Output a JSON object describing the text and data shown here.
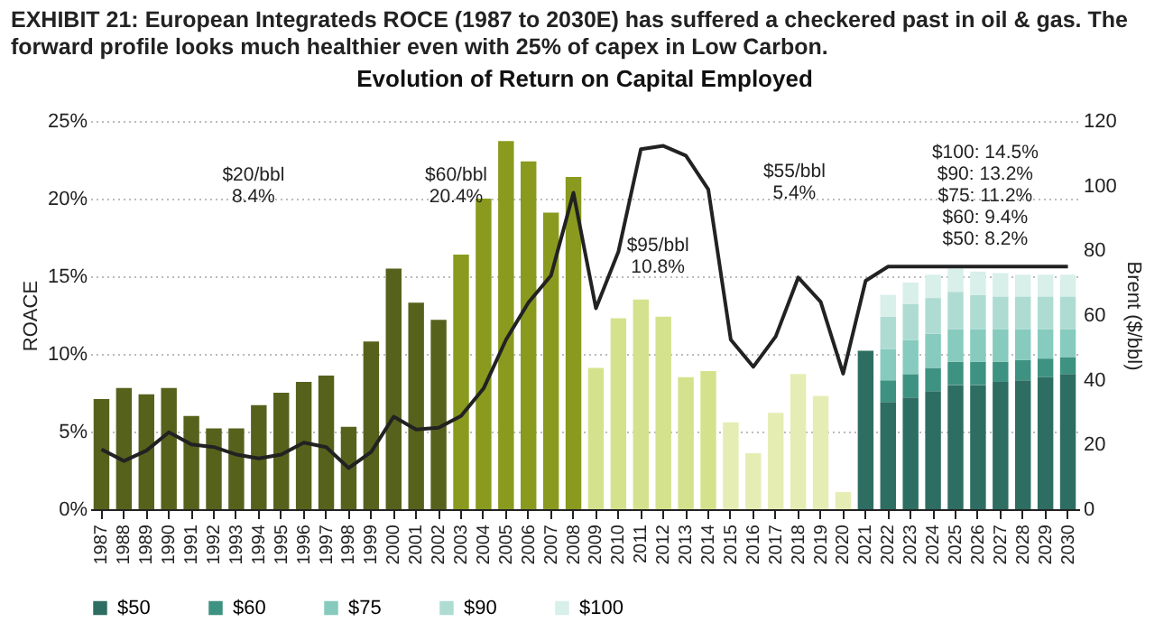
{
  "chart_data": {
    "type": "bar",
    "stacked": true,
    "subtitle": "EXHIBIT 21: European Integrateds ROCE (1987 to 2030E) has suffered a checkered past in oil & gas. The forward profile looks much healthier even with 25% of capex in Low Carbon.",
    "title": "Evolution of Return on Capital Employed",
    "ylabel": "ROACE",
    "y2label": "Brent ($/bbl)",
    "categories": [
      "1987",
      "1988",
      "1989",
      "1990",
      "1991",
      "1992",
      "1993",
      "1994",
      "1995",
      "1996",
      "1997",
      "1998",
      "1999",
      "2000",
      "2001",
      "2002",
      "2003",
      "2004",
      "2005",
      "2006",
      "2007",
      "2008",
      "2009",
      "2010",
      "2011",
      "2012",
      "2013",
      "2014",
      "2015",
      "2016",
      "2017",
      "2018",
      "2019",
      "2020",
      "2021",
      "2022",
      "2023",
      "2024",
      "2025",
      "2026",
      "2027",
      "2028",
      "2029",
      "2030"
    ],
    "ylim": [
      0,
      25
    ],
    "yticks": [
      {
        "value": 0,
        "label": "0%"
      },
      {
        "value": 5,
        "label": "5%"
      },
      {
        "value": 10,
        "label": "10%"
      },
      {
        "value": 15,
        "label": "15%"
      },
      {
        "value": 20,
        "label": "20%"
      },
      {
        "value": 25,
        "label": "25%"
      }
    ],
    "y2lim": [
      0,
      120
    ],
    "y2ticks": [
      0,
      20,
      40,
      60,
      80,
      100,
      120
    ],
    "grid": "y",
    "legend": "bottom",
    "series": [
      {
        "color": "#56621c",
        "values": [
          7.1,
          7.8,
          7.4,
          7.8,
          6.0,
          5.2,
          5.2,
          6.7,
          7.5,
          8.2,
          8.6,
          5.3,
          10.8,
          15.5,
          13.3,
          12.2,
          null,
          null,
          null,
          null,
          null,
          null,
          null,
          null,
          null,
          null,
          null,
          null,
          null,
          null,
          null,
          null,
          null,
          null,
          null,
          null,
          null,
          null,
          null,
          null,
          null,
          null,
          null,
          null
        ]
      },
      {
        "color": "#8a9a1f",
        "values": [
          null,
          null,
          null,
          null,
          null,
          null,
          null,
          null,
          null,
          null,
          null,
          null,
          null,
          null,
          null,
          null,
          16.4,
          20.0,
          23.7,
          22.4,
          19.1,
          21.4,
          null,
          null,
          null,
          null,
          null,
          null,
          null,
          null,
          null,
          null,
          null,
          null,
          null,
          null,
          null,
          null,
          null,
          null,
          null,
          null,
          null,
          null
        ]
      },
      {
        "color": "#d5e28d",
        "values": [
          null,
          null,
          null,
          null,
          null,
          null,
          null,
          null,
          null,
          null,
          null,
          null,
          null,
          null,
          null,
          null,
          null,
          null,
          null,
          null,
          null,
          null,
          9.1,
          12.3,
          13.5,
          12.4,
          8.5,
          8.9,
          null,
          null,
          null,
          null,
          null,
          null,
          null,
          null,
          null,
          null,
          null,
          null,
          null,
          null,
          null,
          null
        ]
      },
      {
        "color": "#e6edb4",
        "values": [
          null,
          null,
          null,
          null,
          null,
          null,
          null,
          null,
          null,
          null,
          null,
          null,
          null,
          null,
          null,
          null,
          null,
          null,
          null,
          null,
          null,
          null,
          null,
          null,
          null,
          null,
          null,
          null,
          5.6,
          3.6,
          6.2,
          8.7,
          7.3,
          1.1,
          null,
          null,
          null,
          null,
          null,
          null,
          null,
          null,
          null,
          null
        ]
      },
      {
        "name": "$50",
        "color": "#2e6e62",
        "values": [
          null,
          null,
          null,
          null,
          null,
          null,
          null,
          null,
          null,
          null,
          null,
          null,
          null,
          null,
          null,
          null,
          null,
          null,
          null,
          null,
          null,
          null,
          null,
          null,
          null,
          null,
          null,
          null,
          null,
          null,
          null,
          null,
          null,
          null,
          10.2,
          6.9,
          7.2,
          7.6,
          8.0,
          8.0,
          8.2,
          8.3,
          8.5,
          8.7
        ]
      },
      {
        "name": "$60",
        "color": "#3e9282",
        "values": [
          null,
          null,
          null,
          null,
          null,
          null,
          null,
          null,
          null,
          null,
          null,
          null,
          null,
          null,
          null,
          null,
          null,
          null,
          null,
          null,
          null,
          null,
          null,
          null,
          null,
          null,
          null,
          null,
          null,
          null,
          null,
          null,
          null,
          null,
          null,
          1.4,
          1.5,
          1.5,
          1.5,
          1.5,
          1.3,
          1.3,
          1.2,
          1.1
        ]
      },
      {
        "name": "$75",
        "color": "#86cbbd",
        "values": [
          null,
          null,
          null,
          null,
          null,
          null,
          null,
          null,
          null,
          null,
          null,
          null,
          null,
          null,
          null,
          null,
          null,
          null,
          null,
          null,
          null,
          null,
          null,
          null,
          null,
          null,
          null,
          null,
          null,
          null,
          null,
          null,
          null,
          null,
          null,
          2.0,
          2.2,
          2.2,
          2.1,
          2.1,
          2.1,
          2.0,
          1.9,
          1.8
        ]
      },
      {
        "name": "$90",
        "color": "#aedcd2",
        "values": [
          null,
          null,
          null,
          null,
          null,
          null,
          null,
          null,
          null,
          null,
          null,
          null,
          null,
          null,
          null,
          null,
          null,
          null,
          null,
          null,
          null,
          null,
          null,
          null,
          null,
          null,
          null,
          null,
          null,
          null,
          null,
          null,
          null,
          null,
          null,
          2.1,
          2.3,
          2.3,
          2.4,
          2.2,
          2.1,
          2.1,
          2.1,
          2.1
        ]
      },
      {
        "name": "$100",
        "color": "#d8efea",
        "values": [
          null,
          null,
          null,
          null,
          null,
          null,
          null,
          null,
          null,
          null,
          null,
          null,
          null,
          null,
          null,
          null,
          null,
          null,
          null,
          null,
          null,
          null,
          null,
          null,
          null,
          null,
          null,
          null,
          null,
          null,
          null,
          null,
          null,
          null,
          null,
          1.4,
          1.4,
          1.5,
          1.5,
          1.5,
          1.5,
          1.4,
          1.4,
          1.4
        ]
      },
      {
        "type": "line",
        "axis": "y2",
        "color": "#222222",
        "values": [
          18.5,
          14.9,
          18.1,
          23.8,
          20,
          19.2,
          16.9,
          15.7,
          16.9,
          20.6,
          19.2,
          12.7,
          17.7,
          28.6,
          24.6,
          25.2,
          28.8,
          37.3,
          52.4,
          63.9,
          72.2,
          97.8,
          62.1,
          79.6,
          111.3,
          112.3,
          109.3,
          98.8,
          52.4,
          44,
          53.4,
          71.6,
          64.1,
          41.9,
          70.6,
          75,
          75,
          75,
          75,
          75,
          75,
          75,
          75,
          75
        ]
      }
    ],
    "annotations": [
      "$20/bbl\n8.4%",
      "$60/bbl\n20.4%",
      "$95/bbl\n10.8%",
      "$55/bbl\n5.4%",
      "$100: 14.5%\n$90: 13.2%\n$75: 11.2%\n$60: 9.4%\n$50: 8.2%"
    ]
  }
}
